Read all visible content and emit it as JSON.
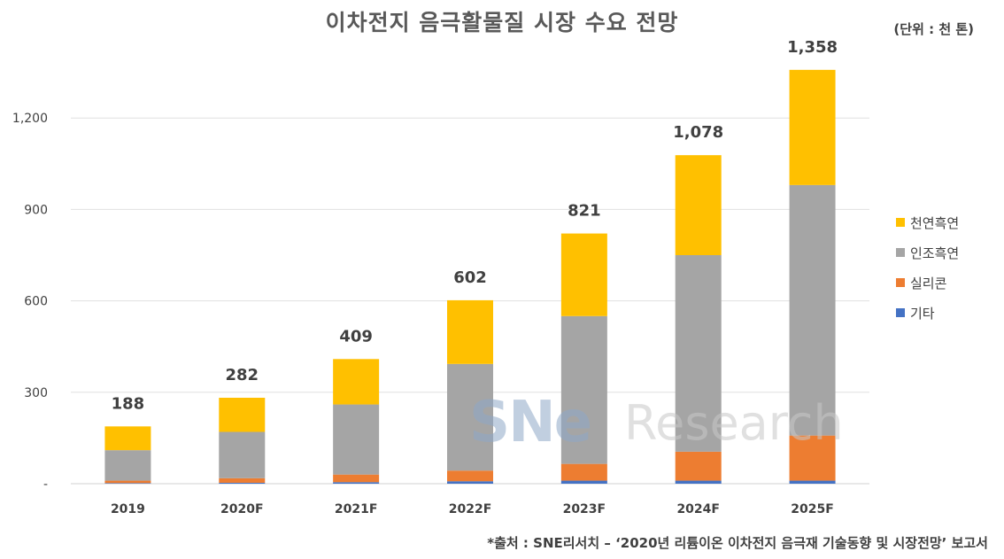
{
  "title": "이차전지 음극활물질 시장 수요 전망",
  "unit": "(단위 : 천 톤)",
  "source": "*출처 : SNE리서치 – ‘2020년 리튬이온 이차전지 음극재 기술동향 및 시장전망’ 보고서",
  "watermark": {
    "sne": "SNe",
    "research": "Research"
  },
  "colors": {
    "natural": "#FFC000",
    "artificial": "#A5A5A5",
    "silicon": "#ED7D31",
    "other": "#4472C4"
  },
  "chart_data": {
    "type": "bar",
    "stacked": true,
    "title": "이차전지 음극활물질 시장 수요 전망",
    "unit": "(단위 : 천 톤)",
    "categories": [
      "2019",
      "2020F",
      "2021F",
      "2022F",
      "2023F",
      "2024F",
      "2025F"
    ],
    "y_tick_labels": [
      "-",
      "300",
      "600",
      "900",
      "1,200"
    ],
    "y_ticks": [
      0,
      300,
      600,
      900,
      1200
    ],
    "ylim": [
      0,
      1350
    ],
    "grid": true,
    "legend_position": "right",
    "series": [
      {
        "name": "기타",
        "color": "#4472C4",
        "values": [
          2,
          3,
          5,
          8,
          10,
          10,
          10
        ]
      },
      {
        "name": "실리콘",
        "color": "#ED7D31",
        "values": [
          8,
          15,
          25,
          35,
          55,
          95,
          148
        ]
      },
      {
        "name": "인조흑연",
        "color": "#A5A5A5",
        "values": [
          100,
          152,
          230,
          350,
          485,
          645,
          822
        ]
      },
      {
        "name": "천연흑연",
        "color": "#FFC000",
        "values": [
          78,
          112,
          149,
          209,
          271,
          328,
          378
        ]
      }
    ],
    "totals": [
      188,
      282,
      409,
      602,
      821,
      1078,
      1358
    ],
    "total_labels": [
      "188",
      "282",
      "409",
      "602",
      "821",
      "1,078",
      "1,358"
    ],
    "legend_order": [
      "천연흑연",
      "인조흑연",
      "실리콘",
      "기타"
    ]
  }
}
